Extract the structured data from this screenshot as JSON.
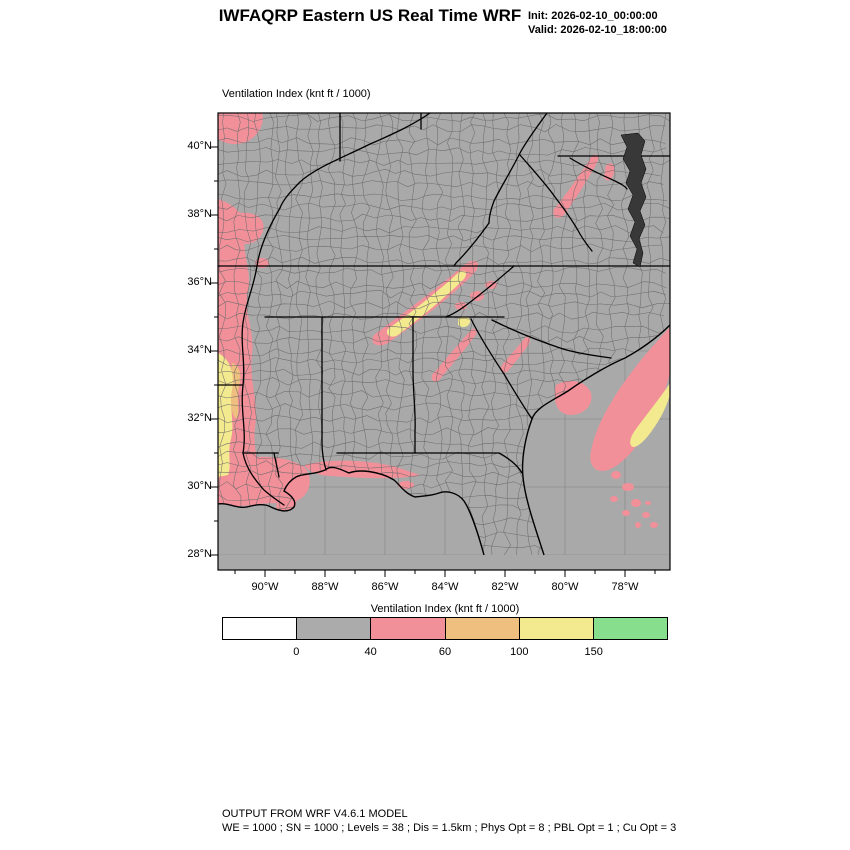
{
  "header": {
    "title": "IWFAQRP Eastern US Real Time WRF",
    "init_label": "Init: 2026-02-10_00:00:00",
    "valid_label": "Valid: 2026-02-10_18:00:00"
  },
  "map": {
    "panel_label": "Ventilation Index   (knt ft / 1000)",
    "lat_labels": [
      "40°N",
      "38°N",
      "36°N",
      "34°N",
      "32°N",
      "30°N",
      "28°N"
    ],
    "lon_labels": [
      "90°W",
      "88°W",
      "86°W",
      "84°W",
      "82°W",
      "80°W",
      "78°W"
    ]
  },
  "colorbar": {
    "label": "Ventilation Index  (knt ft / 1000)",
    "tick_labels": [
      "0",
      "40",
      "60",
      "100",
      "150"
    ],
    "colors": [
      "#ffffff",
      "#ababab",
      "#f2909a",
      "#efbf7f",
      "#f3e98f",
      "#87df8d"
    ]
  },
  "footer": {
    "line1": "OUTPUT FROM WRF V4.6.1 MODEL",
    "line2": "WE = 1000 ; SN = 1000 ; Levels = 38 ; Dis = 1.5km ; Phys Opt = 8 ; PBL Opt = 1 ; Cu Opt = 3"
  },
  "chart_data": {
    "type": "heatmap",
    "title": "Ventilation Index (knt ft / 1000)",
    "subtitle": "IWFAQRP Eastern US Real Time WRF, Init 2026-02-10_00:00:00, Valid 2026-02-10_18:00:00",
    "x_ticks": [
      "90°W",
      "88°W",
      "86°W",
      "84°W",
      "82°W",
      "80°W",
      "78°W"
    ],
    "y_ticks": [
      "40°N",
      "38°N",
      "36°N",
      "34°N",
      "32°N",
      "30°N",
      "28°N"
    ],
    "extent": {
      "lon_west": "91.6°W",
      "lon_east": "76.5°W",
      "lat_south": "27.6°N",
      "lat_north": "41°N"
    },
    "legend_position": "bottom",
    "grid": "county and state boundaries over shaded field",
    "colorbar_bins": {
      "edges": [
        0,
        40,
        60,
        100,
        150
      ],
      "bin_colors": [
        "#ffffff",
        "#ababab",
        "#f2909a",
        "#efbf7f",
        "#f3e98f",
        "#87df8d"
      ],
      "bin_meaning": [
        "below 0",
        "0-40",
        "40-60",
        "60-100",
        "100-150",
        "above 150"
      ]
    },
    "background_value_range": "0-40 (gray) over most land and ocean",
    "shaded_regions": [
      {
        "area": "Lower Mississippi Valley along west edge (~36N to 30N)",
        "value_range": "40-150 (pink band with yellow core near 33-31N)"
      },
      {
        "area": "Northwest corner (Missouri area)",
        "value_range": "40-60"
      },
      {
        "area": "Southern Appalachians, eastern Tennessee valley ridges",
        "value_range": "40-150 (diagonal pink streaks with yellow cores)"
      },
      {
        "area": "Western Virginia / West Virginia ridges",
        "value_range": "40-60"
      },
      {
        "area": "Central Georgia / South Carolina inland streaks",
        "value_range": "40-100"
      },
      {
        "area": "South Carolina coast near Charleston",
        "value_range": "40-60"
      },
      {
        "area": "Louisiana delta and Mississippi-Alabama Gulf coast",
        "value_range": "40-60"
      },
      {
        "area": "Atlantic offshore Gulf Stream band parallel to coast",
        "value_range": "40-150 (pink band, yellow core, scattered speckles south)"
      }
    ]
  }
}
